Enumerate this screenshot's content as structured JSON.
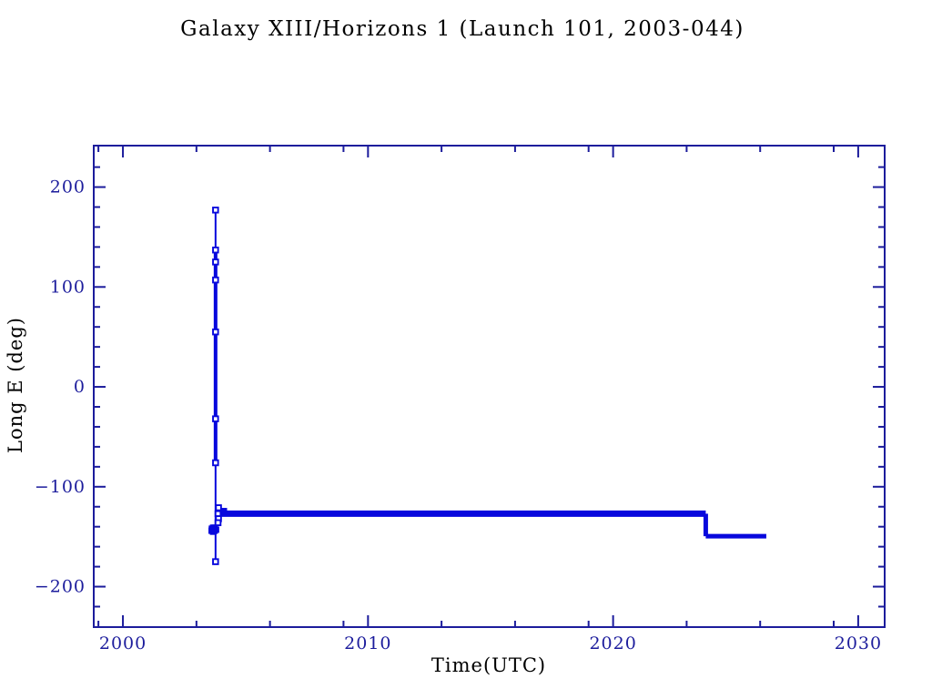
{
  "window": {
    "title": "Galaxy XIII/Horizons 1 (Launch 101, 2003-044)"
  },
  "colors": {
    "background": "#ffffff",
    "axis": "#1c1c9c",
    "text": "#1c1c9c",
    "data": "#0808dd",
    "marker_fill": "#ffffff"
  },
  "chart_data": {
    "type": "line",
    "title": "Galaxy XIII/Horizons 1 (Launch 101, 2003-044)",
    "xlabel": "Time(UTC)",
    "ylabel": "Long E (deg)",
    "xlim": [
      1998.81,
      2031.08
    ],
    "ylim": [
      -240.5,
      241.5
    ],
    "grid": false,
    "legend": null,
    "x_axis": {
      "major_ticks": [
        2000,
        2010,
        2020,
        2030
      ],
      "major_labels": [
        "2000",
        "2010",
        "2020",
        "2030"
      ],
      "minor_ticks": [
        1999,
        2003,
        2006,
        2009,
        2013,
        2016,
        2019,
        2023,
        2026,
        2029
      ]
    },
    "y_axis": {
      "major_ticks": [
        -200,
        -100,
        0,
        100,
        200
      ],
      "major_labels": [
        "−200",
        "−100",
        "0",
        "100",
        "200"
      ],
      "minor_ticks": [
        -220,
        -180,
        -160,
        -140,
        -120,
        -80,
        -60,
        -40,
        -20,
        20,
        40,
        60,
        80,
        120,
        140,
        160,
        180,
        220
      ]
    },
    "series": [
      {
        "name": "longitude-history",
        "description": "Geostationary longitude vs time: launch drift wrap in late 2003, station at -127 deg until 2023.8, relocation to -150 deg until 2026.3",
        "segments": [
          {
            "kind": "v",
            "x": 2003.78,
            "y1": 177,
            "y2": -175,
            "w": 2
          },
          {
            "kind": "v",
            "x": 2003.78,
            "y1": 137,
            "y2": -76,
            "w": 4
          },
          {
            "kind": "h",
            "y": -123,
            "x1": 2003.82,
            "x2": 2004.25,
            "w": 4
          },
          {
            "kind": "h",
            "y": -127,
            "x1": 2003.86,
            "x2": 2023.78,
            "w": 7
          },
          {
            "kind": "v",
            "x": 2023.78,
            "y1": -127,
            "y2": -149.5,
            "w": 5
          },
          {
            "kind": "h",
            "y": -149.5,
            "x1": 2023.78,
            "x2": 2026.25,
            "w": 5
          }
        ],
        "markers_open": [
          [
            2003.78,
            177
          ],
          [
            2003.78,
            137
          ],
          [
            2003.78,
            125
          ],
          [
            2003.78,
            107
          ],
          [
            2003.78,
            55
          ],
          [
            2003.78,
            -32
          ],
          [
            2003.78,
            -76
          ],
          [
            2003.9,
            -121
          ],
          [
            2003.88,
            -127
          ],
          [
            2003.9,
            -132
          ],
          [
            2003.88,
            -136
          ],
          [
            2003.78,
            -175
          ]
        ],
        "markers_filled": [
          [
            2003.62,
            -144
          ],
          [
            2003.68,
            -145
          ],
          [
            2003.74,
            -144
          ],
          [
            2003.8,
            -143
          ],
          [
            2003.68,
            -141
          ],
          [
            2003.75,
            -141
          ],
          [
            2003.63,
            -142
          ],
          [
            2003.72,
            -144
          ]
        ]
      }
    ]
  }
}
